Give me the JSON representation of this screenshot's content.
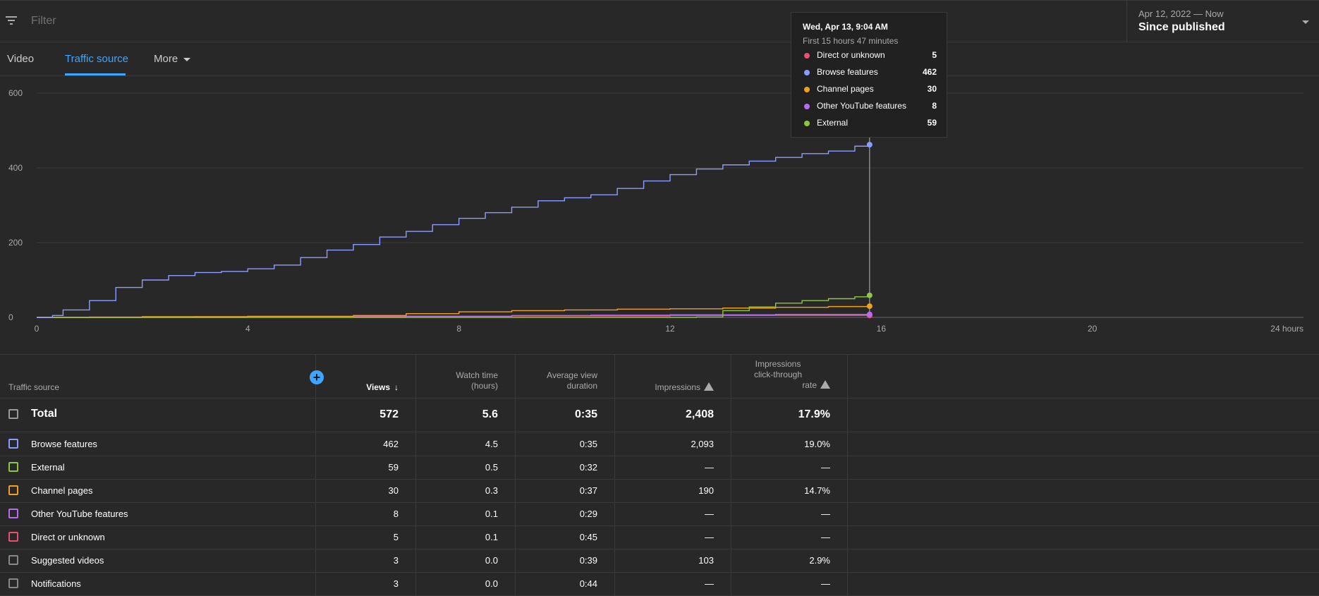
{
  "filter": {
    "placeholder": "Filter"
  },
  "date": {
    "range": "Apr 12, 2022 — Now",
    "label": "Since published"
  },
  "tabs": [
    {
      "label": "Video"
    },
    {
      "label": "Traffic source"
    },
    {
      "label": "More"
    }
  ],
  "tooltip": {
    "title": "Wed, Apr 13, 9:04 AM",
    "subtitle": "First 15 hours 47 minutes",
    "rows": [
      {
        "label": "Direct or unknown",
        "value": "5",
        "color": "#e8506e"
      },
      {
        "label": "Browse features",
        "value": "462",
        "color": "#8b9cff"
      },
      {
        "label": "Channel pages",
        "value": "30",
        "color": "#f0a020"
      },
      {
        "label": "Other YouTube features",
        "value": "8",
        "color": "#b96af0"
      },
      {
        "label": "External",
        "value": "59",
        "color": "#8ec63f"
      }
    ]
  },
  "chart_data": {
    "type": "line",
    "x_ticks": [
      "0",
      "4",
      "8",
      "12",
      "16",
      "20",
      "24 hours"
    ],
    "y_ticks": [
      "0",
      "200",
      "400",
      "600"
    ],
    "xlim": [
      0,
      24
    ],
    "ylim": [
      0,
      600
    ],
    "cursor_x": 15.78,
    "series": [
      {
        "name": "Browse features",
        "color": "#8b9cff",
        "x": [
          0,
          0.3,
          0.5,
          1.0,
          1.5,
          2.0,
          2.5,
          3.0,
          3.5,
          4.0,
          4.5,
          5.0,
          5.5,
          6.0,
          6.5,
          7.0,
          7.5,
          8.0,
          8.5,
          9.0,
          9.5,
          10.0,
          10.5,
          11.0,
          11.5,
          12.0,
          12.5,
          13.0,
          13.5,
          14.0,
          14.5,
          15.0,
          15.5,
          15.78
        ],
        "y": [
          0,
          5,
          20,
          45,
          80,
          100,
          112,
          120,
          123,
          130,
          140,
          160,
          180,
          195,
          215,
          230,
          248,
          265,
          280,
          295,
          312,
          320,
          328,
          345,
          365,
          382,
          397,
          408,
          418,
          428,
          438,
          445,
          458,
          462
        ]
      },
      {
        "name": "External",
        "color": "#8ec63f",
        "x": [
          0,
          12.5,
          13.0,
          13.5,
          14.0,
          14.5,
          15.0,
          15.5,
          15.78
        ],
        "y": [
          0,
          1,
          18,
          28,
          38,
          45,
          50,
          55,
          59
        ]
      },
      {
        "name": "Channel pages",
        "color": "#f0a020",
        "x": [
          0,
          2.0,
          4.0,
          6.0,
          7.0,
          8.0,
          9.0,
          10.0,
          11.0,
          12.0,
          13.0,
          14.0,
          15.0,
          15.78
        ],
        "y": [
          0,
          2,
          3,
          5,
          10,
          15,
          18,
          20,
          22,
          23,
          25,
          27,
          29,
          30
        ]
      },
      {
        "name": "Other YouTube features",
        "color": "#b96af0",
        "x": [
          0,
          4.0,
          7.0,
          9.0,
          10.5,
          12.0,
          14.0,
          15.78
        ],
        "y": [
          0,
          1,
          3,
          5,
          6,
          7,
          8,
          8
        ]
      },
      {
        "name": "Direct or unknown",
        "color": "#e8506e",
        "x": [
          0,
          1.0,
          3.0,
          6.0,
          9.0,
          12.0,
          15.78
        ],
        "y": [
          0,
          1,
          2,
          3,
          4,
          5,
          5
        ]
      }
    ]
  },
  "table": {
    "headers": {
      "source": "Traffic source",
      "views": "Views",
      "watch_time_1": "Watch time",
      "watch_time_2": "(hours)",
      "avg_dur_1": "Average view",
      "avg_dur_2": "duration",
      "impressions": "Impressions",
      "ctr_1": "Impressions",
      "ctr_2": "click-through",
      "ctr_3": "rate"
    },
    "total": {
      "name": "Total",
      "views": "572",
      "watch": "5.6",
      "avg": "0:35",
      "impressions": "2,408",
      "ctr": "17.9%"
    },
    "rows": [
      {
        "name": "Browse features",
        "views": "462",
        "watch": "4.5",
        "avg": "0:35",
        "impressions": "2,093",
        "ctr": "19.0%",
        "color": "#8b9cff"
      },
      {
        "name": "External",
        "views": "59",
        "watch": "0.5",
        "avg": "0:32",
        "impressions": "—",
        "ctr": "—",
        "color": "#8ec63f"
      },
      {
        "name": "Channel pages",
        "views": "30",
        "watch": "0.3",
        "avg": "0:37",
        "impressions": "190",
        "ctr": "14.7%",
        "color": "#f0a020"
      },
      {
        "name": "Other YouTube features",
        "views": "8",
        "watch": "0.1",
        "avg": "0:29",
        "impressions": "—",
        "ctr": "—",
        "color": "#b96af0"
      },
      {
        "name": "Direct or unknown",
        "views": "5",
        "watch": "0.1",
        "avg": "0:45",
        "impressions": "—",
        "ctr": "—",
        "color": "#e8506e"
      },
      {
        "name": "Suggested videos",
        "views": "3",
        "watch": "0.0",
        "avg": "0:39",
        "impressions": "103",
        "ctr": "2.9%",
        "color": "#888888"
      },
      {
        "name": "Notifications",
        "views": "3",
        "watch": "0.0",
        "avg": "0:44",
        "impressions": "—",
        "ctr": "—",
        "color": "#888888"
      }
    ]
  }
}
